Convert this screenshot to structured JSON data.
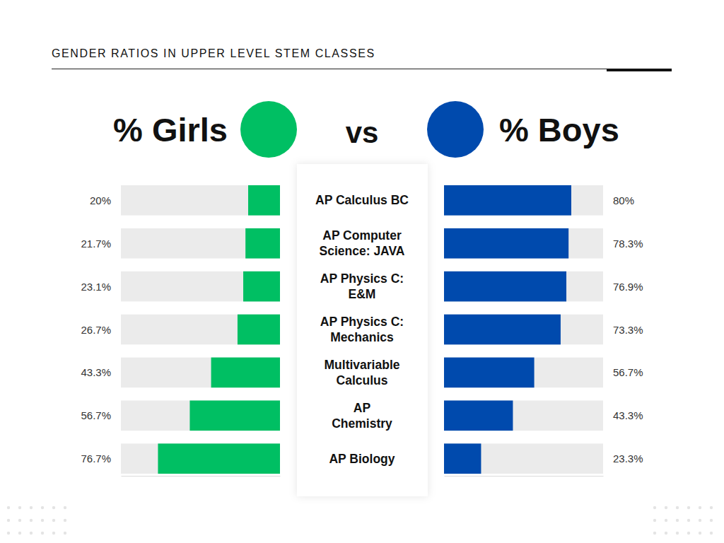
{
  "chart_data": {
    "type": "bar",
    "orientation": "horizontal",
    "title": "GENDER RATIOS IN UPPER LEVEL STEM CLASSES",
    "annotations": [
      "vs"
    ],
    "categories": [
      "AP Calculus BC",
      "AP Computer\nScience: JAVA",
      "AP Physics C:\nE&M",
      "AP Physics C:\nMechanics",
      "Multivariable\nCalculus",
      "AP\nChemistry",
      "AP Biology"
    ],
    "series": [
      {
        "name": "% Girls",
        "color": "#00bf63",
        "values": [
          20,
          21.7,
          23.1,
          26.7,
          43.3,
          56.7,
          76.7
        ],
        "value_labels": [
          "20%",
          "21.7%",
          "23.1%",
          "26.7%",
          "43.3%",
          "56.7%",
          "76.7%"
        ]
      },
      {
        "name": "% Boys",
        "color": "#004aad",
        "values": [
          80,
          78.3,
          76.9,
          73.3,
          56.7,
          43.3,
          23.3
        ],
        "value_labels": [
          "80%",
          "78.3%",
          "76.9%",
          "73.3%",
          "56.7%",
          "43.3%",
          "23.3%"
        ]
      }
    ],
    "xlim": [
      0,
      100
    ],
    "data_labels": true,
    "tick_labels": false
  }
}
